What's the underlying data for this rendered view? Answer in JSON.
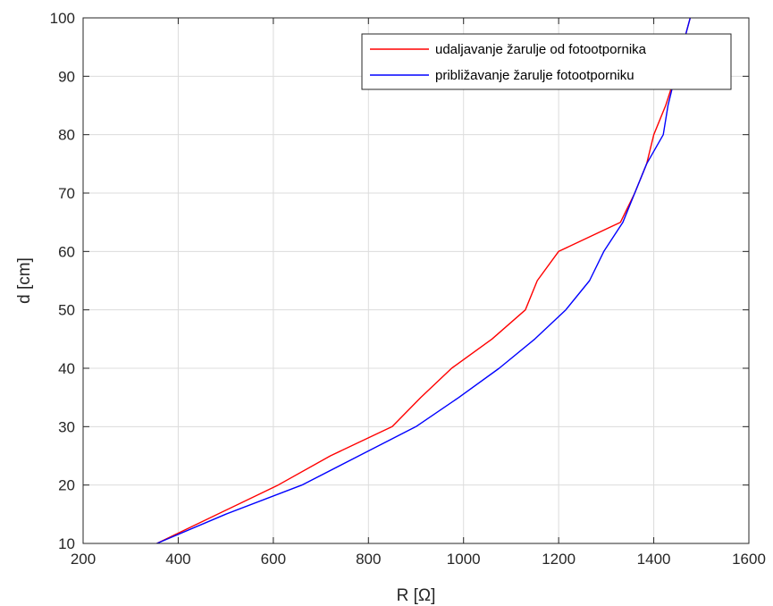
{
  "chart_data": {
    "type": "line",
    "xlabel": "R [Ω]",
    "ylabel": "d [cm]",
    "xlim": [
      200,
      1600
    ],
    "ylim": [
      10,
      100
    ],
    "xticks": [
      200,
      400,
      600,
      800,
      1000,
      1200,
      1400,
      1600
    ],
    "yticks": [
      10,
      20,
      30,
      40,
      50,
      60,
      70,
      80,
      90,
      100
    ],
    "grid": true,
    "legend_position": "top-right",
    "series": [
      {
        "name": "udaljavanje žarulje od fotootpornika",
        "color": "#ff0000",
        "points": [
          [
            355,
            10
          ],
          [
            610,
            20
          ],
          [
            720,
            25
          ],
          [
            850,
            30
          ],
          [
            910,
            35
          ],
          [
            975,
            40
          ],
          [
            1060,
            45
          ],
          [
            1130,
            50
          ],
          [
            1155,
            55
          ],
          [
            1200,
            60
          ],
          [
            1265,
            62.5
          ],
          [
            1330,
            65
          ],
          [
            1360,
            70
          ],
          [
            1385,
            75
          ],
          [
            1400,
            80
          ],
          [
            1425,
            85
          ],
          [
            1445,
            90
          ],
          [
            1460,
            95
          ],
          [
            1480,
            101
          ]
        ]
      },
      {
        "name": "približavanje žarulje fotootporniku",
        "color": "#0000ff",
        "points": [
          [
            355,
            10
          ],
          [
            500,
            15
          ],
          [
            660,
            20
          ],
          [
            780,
            25
          ],
          [
            900,
            30
          ],
          [
            990,
            35
          ],
          [
            1075,
            40
          ],
          [
            1150,
            45
          ],
          [
            1215,
            50
          ],
          [
            1265,
            55
          ],
          [
            1295,
            60
          ],
          [
            1335,
            65
          ],
          [
            1360,
            70
          ],
          [
            1385,
            75
          ],
          [
            1420,
            80
          ],
          [
            1430,
            85
          ],
          [
            1445,
            90
          ],
          [
            1460,
            95
          ],
          [
            1480,
            101
          ]
        ]
      }
    ]
  }
}
